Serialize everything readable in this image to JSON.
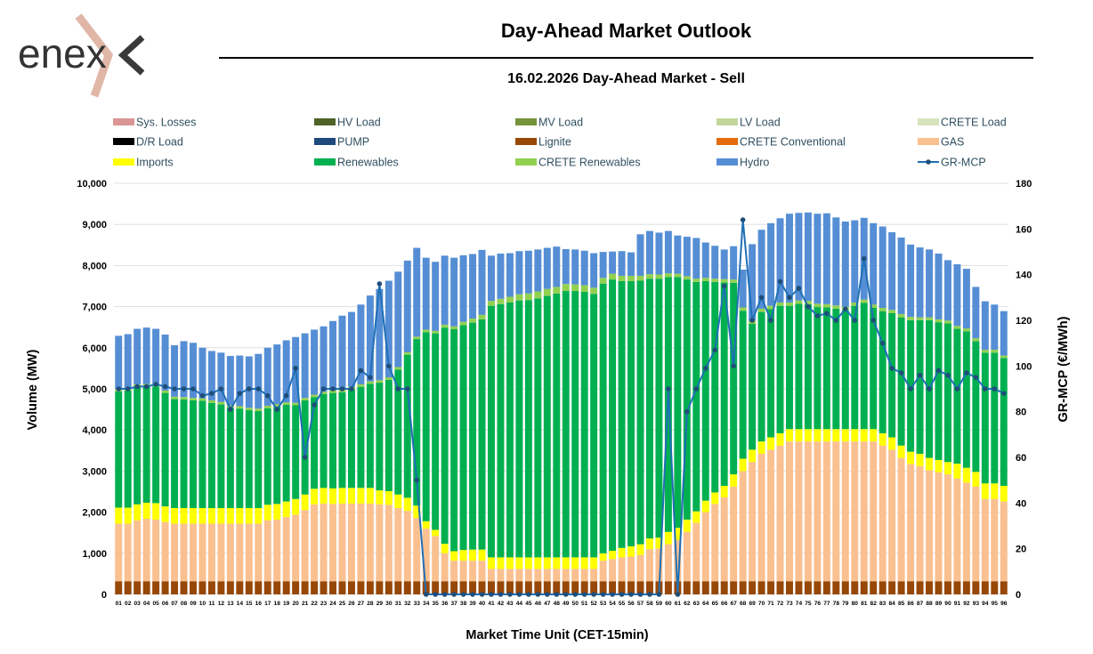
{
  "header": {
    "title": "Day-Ahead Market Outlook",
    "brand": "enex"
  },
  "chart_data": {
    "type": "bar",
    "title": "16.02.2026  Day-Ahead Market - Sell",
    "xlabel": "Market Time Unit (CET-15min)",
    "ylabel": "Volume (MW)",
    "y2label": "GR-MCP (€/MWh)",
    "ylim": [
      0,
      10000
    ],
    "y2lim": [
      0,
      180
    ],
    "yticks": [
      "0",
      "1,000",
      "2,000",
      "3,000",
      "4,000",
      "5,000",
      "6,000",
      "7,000",
      "8,000",
      "9,000",
      "10,000"
    ],
    "y2ticks": [
      "0",
      "20",
      "40",
      "60",
      "80",
      "100",
      "120",
      "140",
      "160",
      "180"
    ],
    "categories": [
      "01",
      "02",
      "03",
      "04",
      "05",
      "06",
      "07",
      "08",
      "09",
      "10",
      "11",
      "12",
      "13",
      "14",
      "15",
      "16",
      "17",
      "18",
      "19",
      "20",
      "21",
      "22",
      "23",
      "24",
      "25",
      "26",
      "27",
      "28",
      "29",
      "30",
      "31",
      "32",
      "33",
      "34",
      "35",
      "36",
      "37",
      "38",
      "39",
      "40",
      "41",
      "42",
      "43",
      "44",
      "45",
      "46",
      "47",
      "48",
      "49",
      "50",
      "51",
      "52",
      "53",
      "54",
      "55",
      "56",
      "57",
      "58",
      "59",
      "60",
      "61",
      "62",
      "63",
      "64",
      "65",
      "66",
      "67",
      "68",
      "69",
      "70",
      "71",
      "72",
      "73",
      "74",
      "75",
      "76",
      "77",
      "78",
      "79",
      "80",
      "81",
      "82",
      "83",
      "84",
      "85",
      "86",
      "87",
      "88",
      "89",
      "90",
      "91",
      "92",
      "93",
      "94",
      "95",
      "96"
    ],
    "legend": [
      {
        "name": "Sys. Losses",
        "color": "#d99694",
        "kind": "bar"
      },
      {
        "name": "HV Load",
        "color": "#4f6228",
        "kind": "bar"
      },
      {
        "name": "MV Load",
        "color": "#77933c",
        "kind": "bar"
      },
      {
        "name": "LV Load",
        "color": "#c3d69b",
        "kind": "bar"
      },
      {
        "name": "CRETE Load",
        "color": "#d7e4bd",
        "kind": "bar"
      },
      {
        "name": "D/R Load",
        "color": "#000000",
        "kind": "bar"
      },
      {
        "name": "PUMP",
        "color": "#1f497d",
        "kind": "bar"
      },
      {
        "name": "Lignite",
        "color": "#974706",
        "kind": "bar"
      },
      {
        "name": "CRETE Conventional",
        "color": "#e46c0a",
        "kind": "bar"
      },
      {
        "name": "GAS",
        "color": "#fac090",
        "kind": "bar"
      },
      {
        "name": "Imports",
        "color": "#ffff00",
        "kind": "bar"
      },
      {
        "name": "Renewables",
        "color": "#00b050",
        "kind": "bar"
      },
      {
        "name": "CRETE Renewables",
        "color": "#92d050",
        "kind": "bar"
      },
      {
        "name": "Hydro",
        "color": "#558ed5",
        "kind": "bar"
      },
      {
        "name": "GR-MCP",
        "color": "#1f5c99",
        "kind": "line"
      }
    ],
    "series": [
      {
        "name": "Lignite",
        "color": "#974706",
        "values": [
          320,
          320,
          320,
          320,
          320,
          320,
          320,
          320,
          320,
          320,
          320,
          320,
          320,
          320,
          320,
          320,
          320,
          320,
          320,
          320,
          320,
          320,
          320,
          320,
          320,
          320,
          320,
          320,
          320,
          320,
          320,
          320,
          320,
          320,
          320,
          320,
          320,
          320,
          320,
          320,
          320,
          320,
          320,
          320,
          320,
          320,
          320,
          320,
          320,
          320,
          320,
          320,
          320,
          320,
          320,
          320,
          320,
          320,
          320,
          320,
          320,
          320,
          320,
          320,
          320,
          320,
          320,
          320,
          320,
          320,
          320,
          320,
          320,
          320,
          320,
          320,
          320,
          320,
          320,
          320,
          320,
          320,
          320,
          320,
          320,
          320,
          320,
          320,
          320,
          320,
          320,
          320,
          320,
          320,
          320,
          320
        ]
      },
      {
        "name": "GAS",
        "color": "#fac090",
        "values": [
          1400,
          1400,
          1480,
          1520,
          1500,
          1440,
          1400,
          1400,
          1400,
          1400,
          1400,
          1400,
          1400,
          1400,
          1400,
          1400,
          1480,
          1500,
          1560,
          1620,
          1730,
          1870,
          1890,
          1880,
          1890,
          1890,
          1890,
          1890,
          1870,
          1860,
          1780,
          1710,
          1540,
          1280,
          1100,
          680,
          500,
          500,
          500,
          500,
          300,
          300,
          300,
          300,
          300,
          300,
          300,
          300,
          300,
          300,
          300,
          300,
          500,
          540,
          580,
          600,
          640,
          780,
          800,
          900,
          1000,
          1200,
          1420,
          1680,
          1880,
          2040,
          2300,
          2680,
          2900,
          3100,
          3200,
          3300,
          3400,
          3400,
          3400,
          3400,
          3400,
          3400,
          3400,
          3400,
          3400,
          3400,
          3300,
          3200,
          3000,
          2850,
          2800,
          2700,
          2650,
          2600,
          2500,
          2400,
          2300,
          2000,
          2000,
          1940
        ]
      },
      {
        "name": "Imports",
        "color": "#ffff00",
        "values": [
          390,
          390,
          390,
          390,
          400,
          380,
          380,
          380,
          380,
          380,
          380,
          380,
          380,
          380,
          380,
          380,
          380,
          380,
          380,
          380,
          380,
          380,
          380,
          380,
          380,
          380,
          380,
          380,
          340,
          330,
          330,
          320,
          300,
          180,
          150,
          230,
          230,
          260,
          270,
          270,
          280,
          280,
          280,
          280,
          280,
          280,
          280,
          280,
          280,
          280,
          280,
          280,
          180,
          200,
          230,
          250,
          260,
          260,
          260,
          300,
          300,
          300,
          280,
          280,
          280,
          280,
          300,
          300,
          300,
          300,
          300,
          300,
          300,
          300,
          300,
          300,
          300,
          300,
          300,
          300,
          300,
          300,
          300,
          300,
          300,
          300,
          300,
          300,
          300,
          300,
          360,
          360,
          360,
          380,
          380,
          380
        ]
      },
      {
        "name": "Renewables",
        "color": "#00b050",
        "values": [
          2830,
          2850,
          2860,
          2830,
          2840,
          2760,
          2650,
          2640,
          2620,
          2610,
          2560,
          2520,
          2440,
          2420,
          2380,
          2360,
          2350,
          2370,
          2350,
          2280,
          2290,
          2230,
          2280,
          2320,
          2330,
          2400,
          2460,
          2530,
          2620,
          2710,
          3040,
          3480,
          4050,
          4600,
          4780,
          5260,
          5400,
          5470,
          5520,
          5600,
          6120,
          6160,
          6200,
          6250,
          6260,
          6300,
          6360,
          6420,
          6480,
          6480,
          6460,
          6410,
          6560,
          6600,
          6490,
          6450,
          6410,
          6320,
          6300,
          6200,
          6100,
          5840,
          5580,
          5340,
          5120,
          4950,
          4660,
          3600,
          3060,
          3150,
          3120,
          3100,
          3000,
          3050,
          3040,
          2970,
          2960,
          2930,
          2900,
          3000,
          3070,
          2950,
          2970,
          3020,
          3120,
          3200,
          3250,
          3350,
          3350,
          3370,
          3280,
          3320,
          3180,
          3180,
          3180,
          3110
        ]
      },
      {
        "name": "CRETE Renewables",
        "color": "#92d050",
        "values": [
          60,
          60,
          60,
          60,
          60,
          60,
          60,
          60,
          60,
          60,
          60,
          60,
          60,
          60,
          60,
          60,
          60,
          60,
          60,
          60,
          60,
          60,
          60,
          60,
          60,
          60,
          60,
          60,
          60,
          60,
          60,
          60,
          60,
          60,
          60,
          70,
          70,
          80,
          100,
          110,
          120,
          130,
          140,
          150,
          160,
          170,
          170,
          160,
          170,
          160,
          160,
          150,
          140,
          140,
          130,
          130,
          120,
          110,
          100,
          90,
          80,
          80,
          80,
          80,
          80,
          80,
          80,
          80,
          80,
          80,
          80,
          80,
          80,
          80,
          80,
          80,
          80,
          80,
          80,
          80,
          80,
          80,
          80,
          80,
          80,
          80,
          70,
          70,
          70,
          70,
          70,
          70,
          70,
          70,
          70,
          60
        ]
      },
      {
        "name": "Hydro",
        "color": "#558ed5",
        "values": [
          1290,
          1310,
          1350,
          1370,
          1340,
          1360,
          1250,
          1360,
          1340,
          1230,
          1200,
          1200,
          1200,
          1230,
          1250,
          1330,
          1410,
          1450,
          1510,
          1600,
          1570,
          1580,
          1590,
          1690,
          1800,
          1820,
          1940,
          2090,
          2220,
          2350,
          2320,
          2230,
          2160,
          1750,
          1680,
          1680,
          1670,
          1620,
          1570,
          1580,
          1100,
          1100,
          1060,
          1050,
          1040,
          1020,
          1000,
          980,
          850,
          850,
          840,
          840,
          630,
          540,
          600,
          570,
          1010,
          1050,
          1020,
          1030,
          930,
          960,
          990,
          860,
          800,
          720,
          810,
          920,
          1860,
          1920,
          2010,
          2050,
          2160,
          2130,
          2150,
          2190,
          2210,
          2140,
          2070,
          2000,
          1990,
          1980,
          1980,
          1890,
          1860,
          1760,
          1700,
          1650,
          1600,
          1470,
          1500,
          1450,
          1250,
          1180,
          1100,
          1080
        ]
      },
      {
        "name": "GR-MCP",
        "color": "#1f5c99",
        "axis": "right",
        "values": [
          90,
          90,
          91,
          91,
          92,
          91,
          90,
          90,
          90,
          87,
          88,
          90,
          81,
          88,
          90,
          90,
          87,
          81,
          87,
          99,
          60,
          83,
          90,
          90,
          90,
          90,
          98,
          95,
          136,
          100,
          90,
          90,
          50,
          0,
          0,
          0,
          0,
          0,
          0,
          0,
          0,
          0,
          0,
          0,
          0,
          0,
          0,
          0,
          0,
          0,
          0,
          0,
          0,
          0,
          0,
          0,
          0,
          0,
          0,
          90,
          0,
          80,
          90,
          99,
          107,
          135,
          100,
          164,
          120,
          130,
          120,
          137,
          130,
          134,
          126,
          122,
          123,
          120,
          125,
          120,
          147,
          120,
          110,
          99,
          97,
          90,
          96,
          90,
          98,
          96,
          90,
          97,
          95,
          90,
          90,
          88
        ]
      }
    ]
  }
}
